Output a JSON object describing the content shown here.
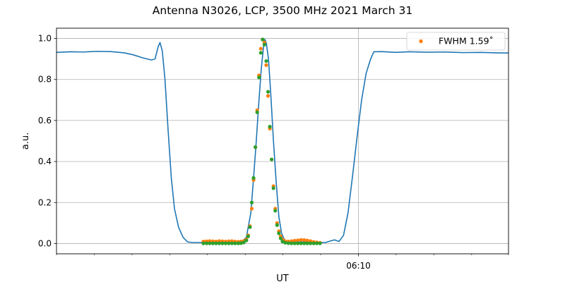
{
  "chart_data": {
    "type": "line",
    "title": "Antenna N3026, LCP, 3500 MHz 2021 March 31",
    "xlabel": "UT",
    "ylabel": "a.u.",
    "ylim": [
      -0.05,
      1.05
    ],
    "xlim": [
      0,
      100
    ],
    "x_unit_note": "",
    "yticks": [
      0.0,
      0.2,
      0.4,
      0.6,
      0.8,
      1.0
    ],
    "ytick_labels": [
      "0.0",
      "0.2",
      "0.4",
      "0.6",
      "0.8",
      "1.0"
    ],
    "xticks_major": [
      {
        "x": 66.8,
        "label": "06:10"
      }
    ],
    "xticks_minor": [
      0,
      8.35,
      16.7,
      25.05,
      33.4,
      41.75,
      50.1,
      58.45,
      75.15,
      83.5,
      91.85,
      100
    ],
    "grid": true,
    "legend": {
      "position": "top-right",
      "entries": [
        {
          "label": "FWHM 1.59$^\\circ$",
          "display": "FWHM 1.59˚",
          "color": "#ff7f0e",
          "marker": "point"
        }
      ]
    },
    "series": [
      {
        "color": "#1f77b4",
        "kind": "line",
        "points": [
          [
            0,
            0.932
          ],
          [
            3,
            0.935
          ],
          [
            6,
            0.934
          ],
          [
            9,
            0.937
          ],
          [
            12,
            0.936
          ],
          [
            15,
            0.93
          ],
          [
            17,
            0.92
          ],
          [
            19,
            0.906
          ],
          [
            21,
            0.895
          ],
          [
            21.8,
            0.9
          ],
          [
            22.5,
            0.96
          ],
          [
            22.9,
            0.98
          ],
          [
            23.4,
            0.94
          ],
          [
            24,
            0.8
          ],
          [
            24.7,
            0.55
          ],
          [
            25.4,
            0.32
          ],
          [
            26.1,
            0.17
          ],
          [
            27,
            0.08
          ],
          [
            28,
            0.03
          ],
          [
            29,
            0.008
          ],
          [
            30,
            0.005
          ],
          [
            32,
            0.005
          ],
          [
            34,
            0.005
          ],
          [
            36,
            0.005
          ],
          [
            38,
            0.006
          ],
          [
            40,
            0.007
          ],
          [
            41,
            0.01
          ],
          [
            42,
            0.03
          ],
          [
            43,
            0.15
          ],
          [
            43.6,
            0.32
          ],
          [
            44.2,
            0.5
          ],
          [
            44.8,
            0.7
          ],
          [
            45.3,
            0.85
          ],
          [
            45.8,
            0.96
          ],
          [
            46.1,
            0.995
          ],
          [
            46.4,
            0.98
          ],
          [
            46.9,
            0.9
          ],
          [
            47.4,
            0.73
          ],
          [
            48,
            0.5
          ],
          [
            48.6,
            0.3
          ],
          [
            49.2,
            0.13
          ],
          [
            49.8,
            0.05
          ],
          [
            50.5,
            0.015
          ],
          [
            52,
            0.008
          ],
          [
            55,
            0.008
          ],
          [
            58,
            0.006
          ],
          [
            59.5,
            0.005
          ],
          [
            60.5,
            0.012
          ],
          [
            61.5,
            0.018
          ],
          [
            62.5,
            0.01
          ],
          [
            63.5,
            0.04
          ],
          [
            64.5,
            0.15
          ],
          [
            65.5,
            0.33
          ],
          [
            66.5,
            0.52
          ],
          [
            67.5,
            0.7
          ],
          [
            68.5,
            0.83
          ],
          [
            69.5,
            0.9
          ],
          [
            70.2,
            0.935
          ],
          [
            72,
            0.936
          ],
          [
            75,
            0.932
          ],
          [
            78,
            0.935
          ],
          [
            82,
            0.933
          ],
          [
            86,
            0.934
          ],
          [
            90,
            0.931
          ],
          [
            94,
            0.932
          ],
          [
            97,
            0.93
          ],
          [
            100,
            0.929
          ]
        ]
      },
      {
        "color": "#ff7f0e",
        "kind": "scatter",
        "label": "FWHM 1.59˚",
        "points": [
          [
            32.5,
            0.01
          ],
          [
            33.2,
            0.011
          ],
          [
            33.9,
            0.012
          ],
          [
            34.6,
            0.011
          ],
          [
            35.3,
            0.01
          ],
          [
            36,
            0.012
          ],
          [
            36.7,
            0.011
          ],
          [
            37.4,
            0.01
          ],
          [
            38.1,
            0.011
          ],
          [
            38.8,
            0.012
          ],
          [
            39.5,
            0.01
          ],
          [
            40.2,
            0.009
          ],
          [
            40.8,
            0.01
          ],
          [
            41.4,
            0.012
          ],
          [
            42,
            0.02
          ],
          [
            42.4,
            0.04
          ],
          [
            42.8,
            0.085
          ],
          [
            43.2,
            0.17
          ],
          [
            43.6,
            0.31
          ],
          [
            44,
            0.47
          ],
          [
            44.4,
            0.65
          ],
          [
            44.8,
            0.82
          ],
          [
            45.2,
            0.95
          ],
          [
            45.6,
            0.995
          ],
          [
            46,
            0.98
          ],
          [
            46.4,
            0.87
          ],
          [
            46.8,
            0.72
          ],
          [
            47.2,
            0.56
          ],
          [
            47.6,
            0.41
          ],
          [
            48,
            0.28
          ],
          [
            48.4,
            0.17
          ],
          [
            48.8,
            0.1
          ],
          [
            49.2,
            0.06
          ],
          [
            49.6,
            0.035
          ],
          [
            50,
            0.02
          ],
          [
            50.6,
            0.012
          ],
          [
            51.3,
            0.01
          ],
          [
            52,
            0.012
          ],
          [
            52.7,
            0.014
          ],
          [
            53.4,
            0.016
          ],
          [
            54.1,
            0.018
          ],
          [
            54.8,
            0.017
          ],
          [
            55.5,
            0.015
          ],
          [
            56.2,
            0.012
          ],
          [
            56.9,
            0.008
          ],
          [
            57.6,
            0.006
          ],
          [
            58.3,
            0.004
          ]
        ]
      },
      {
        "color": "#2ca02c",
        "kind": "scatter",
        "points": [
          [
            32.5,
            0.001
          ],
          [
            33.2,
            0.001
          ],
          [
            33.9,
            0.001
          ],
          [
            34.6,
            0.001
          ],
          [
            35.3,
            0.001
          ],
          [
            36,
            0.001
          ],
          [
            36.7,
            0.001
          ],
          [
            37.4,
            0.001
          ],
          [
            38.1,
            0.001
          ],
          [
            38.8,
            0.001
          ],
          [
            39.5,
            0.001
          ],
          [
            40.2,
            0.001
          ],
          [
            40.8,
            0.002
          ],
          [
            41.4,
            0.005
          ],
          [
            42,
            0.015
          ],
          [
            42.4,
            0.035
          ],
          [
            42.8,
            0.08
          ],
          [
            43.2,
            0.2
          ],
          [
            43.6,
            0.32
          ],
          [
            44,
            0.47
          ],
          [
            44.4,
            0.64
          ],
          [
            44.8,
            0.81
          ],
          [
            45.2,
            0.93
          ],
          [
            45.6,
            0.995
          ],
          [
            46,
            0.97
          ],
          [
            46.4,
            0.89
          ],
          [
            46.8,
            0.74
          ],
          [
            47.2,
            0.57
          ],
          [
            47.6,
            0.41
          ],
          [
            48,
            0.27
          ],
          [
            48.4,
            0.16
          ],
          [
            48.8,
            0.09
          ],
          [
            49.2,
            0.05
          ],
          [
            49.6,
            0.025
          ],
          [
            50,
            0.01
          ],
          [
            50.6,
            0.004
          ],
          [
            51.3,
            0.002
          ],
          [
            52,
            0.001
          ],
          [
            52.7,
            0.001
          ],
          [
            53.4,
            0.001
          ],
          [
            54.1,
            0.001
          ],
          [
            54.8,
            0.001
          ],
          [
            55.5,
            0.001
          ],
          [
            56.2,
            0.001
          ],
          [
            56.9,
            0.001
          ],
          [
            57.6,
            0.001
          ],
          [
            58.3,
            0.001
          ]
        ]
      }
    ]
  }
}
